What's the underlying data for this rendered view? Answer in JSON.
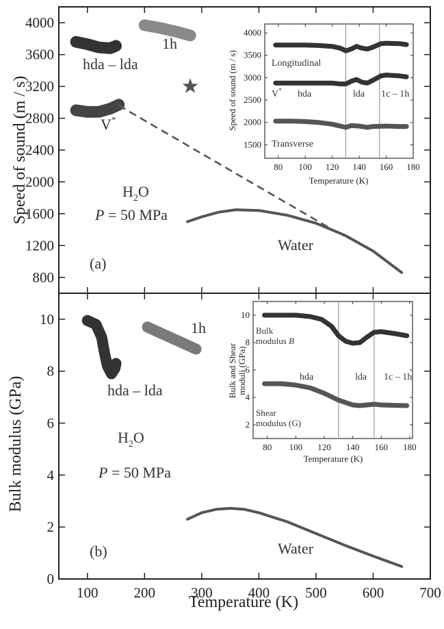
{
  "figure": {
    "x_axis_label": "Temperature (K)",
    "colors": {
      "dark": "#333333",
      "medium": "#555555",
      "light": "#8a8a8a",
      "vline": "#9a9a9a"
    }
  },
  "chart_data": [
    {
      "id": "a",
      "type": "line",
      "panel_label": "(a)",
      "xlabel": "Temperature (K)",
      "ylabel": "Speed of sound (m / s)",
      "xlim": [
        50,
        700
      ],
      "ylim": [
        600,
        4200
      ],
      "x_ticks": [
        100,
        200,
        300,
        400,
        500,
        600,
        700
      ],
      "y_ticks": [
        800,
        1200,
        1600,
        2000,
        2400,
        2800,
        3200,
        3600,
        4000
      ],
      "annotations": {
        "substance": "H",
        "substance_sub": "2",
        "substance_end": "O",
        "pressure_var": "P",
        "pressure_val": " = 50 MPa",
        "hda_lda": "hda – lda",
        "ih": "1h",
        "vstar": "V",
        "vstar_sup": "*",
        "water": "Water"
      },
      "series": [
        {
          "name": "hda – lda",
          "style": "band",
          "color": "#333333",
          "x": [
            80,
            100,
            120,
            140,
            150
          ],
          "y": [
            3760,
            3730,
            3690,
            3680,
            3710
          ]
        },
        {
          "name": "1h",
          "style": "band",
          "color": "#8a8a8a",
          "x": [
            200,
            230,
            260,
            280
          ],
          "y": [
            3970,
            3930,
            3880,
            3840
          ]
        },
        {
          "name": "V*",
          "style": "band",
          "color": "#444444",
          "x": [
            80,
            100,
            120,
            140,
            155
          ],
          "y": [
            2900,
            2880,
            2880,
            2920,
            2970
          ]
        },
        {
          "name": "Water",
          "style": "line",
          "color": "#555555",
          "x": [
            275,
            300,
            330,
            360,
            400,
            450,
            500,
            550,
            600,
            650
          ],
          "y": [
            1500,
            1560,
            1620,
            1650,
            1640,
            1580,
            1480,
            1330,
            1130,
            860
          ]
        },
        {
          "name": "extrapolation",
          "style": "dashed",
          "color": "#555555",
          "x": [
            155,
            548
          ],
          "y": [
            2960,
            1320
          ]
        },
        {
          "name": "star",
          "style": "marker",
          "color": "#555555",
          "x": [
            280
          ],
          "y": [
            3200
          ]
        }
      ],
      "inset": {
        "xlabel": "Temperature (K)",
        "ylabel": "Speed of sound (m / s)",
        "xlim": [
          70,
          180
        ],
        "ylim": [
          1200,
          4200
        ],
        "x_ticks": [
          80,
          100,
          120,
          140,
          160,
          180
        ],
        "y_ticks": [
          1500,
          2000,
          2500,
          3000,
          3500,
          4000
        ],
        "vlines": [
          130,
          155
        ],
        "labels": {
          "longitudinal": "Longitudinal",
          "vstar": "V",
          "vstar_sup": "*",
          "hda": "hda",
          "lda": "lda",
          "ic_ih": "1c – 1h",
          "transverse": "Transverse"
        },
        "series": [
          {
            "name": "Longitudinal",
            "color": "#333333",
            "x": [
              78,
              90,
              100,
              110,
              120,
              126,
              130,
              134,
              138,
              142,
              146,
              150,
              156,
              160,
              170,
              175
            ],
            "y": [
              3730,
              3730,
              3730,
              3720,
              3700,
              3660,
              3600,
              3640,
              3700,
              3660,
              3640,
              3680,
              3760,
              3770,
              3760,
              3740
            ]
          },
          {
            "name": "V*",
            "color": "#333333",
            "x": [
              78,
              90,
              100,
              110,
              120,
              126,
              130,
              134,
              138,
              142,
              146,
              150,
              156,
              160,
              170,
              175
            ],
            "y": [
              2880,
              2880,
              2880,
              2880,
              2880,
              2860,
              2860,
              2920,
              2960,
              2900,
              2880,
              2940,
              3040,
              3060,
              3040,
              3020
            ]
          },
          {
            "name": "Transverse",
            "color": "#555555",
            "x": [
              78,
              90,
              100,
              110,
              120,
              130,
              134,
              140,
              146,
              150,
              160,
              170,
              175
            ],
            "y": [
              2030,
              2030,
              2020,
              2000,
              1960,
              1890,
              1930,
              1920,
              1890,
              1910,
              1920,
              1910,
              1910
            ]
          }
        ]
      }
    },
    {
      "id": "b",
      "type": "line",
      "panel_label": "(b)",
      "xlabel": "Temperature (K)",
      "ylabel": "Bulk modulus (GPa)",
      "xlim": [
        50,
        700
      ],
      "ylim": [
        0,
        11
      ],
      "x_ticks": [
        100,
        200,
        300,
        400,
        500,
        600,
        700
      ],
      "y_ticks": [
        0,
        2,
        4,
        6,
        8,
        10
      ],
      "annotations": {
        "substance": "H",
        "substance_sub": "2",
        "substance_end": "O",
        "pressure_var": "P",
        "pressure_val": " = 50 MPa",
        "hda_lda": "hda – lda",
        "ih": "1h",
        "water": "Water"
      },
      "series": [
        {
          "name": "hda – lda",
          "style": "band",
          "color": "#333333",
          "x": [
            100,
            115,
            125,
            130,
            135,
            142,
            148,
            150
          ],
          "y": [
            9.95,
            9.8,
            9.3,
            8.7,
            8.2,
            7.9,
            8.1,
            8.3
          ]
        },
        {
          "name": "1h",
          "style": "band",
          "color": "#7a7a7a",
          "x": [
            205,
            230,
            260,
            290
          ],
          "y": [
            9.7,
            9.45,
            9.15,
            8.85
          ]
        },
        {
          "name": "Water",
          "style": "line",
          "color": "#555555",
          "x": [
            275,
            300,
            325,
            350,
            375,
            400,
            450,
            500,
            550,
            600,
            650
          ],
          "y": [
            2.3,
            2.55,
            2.68,
            2.72,
            2.68,
            2.55,
            2.2,
            1.75,
            1.3,
            0.88,
            0.48
          ]
        }
      ],
      "inset": {
        "xlabel": "Temperature (K)",
        "ylabel_line1": "Bulk and Shear",
        "ylabel_line2": "moduli (GPa)",
        "xlim": [
          70,
          182
        ],
        "ylim": [
          1,
          11
        ],
        "x_ticks": [
          80,
          100,
          120,
          140,
          160,
          180
        ],
        "y_ticks": [
          2,
          4,
          6,
          8,
          10
        ],
        "vlines": [
          130,
          155
        ],
        "labels": {
          "bulk_1": "Bulk",
          "bulk_2": "modulus ",
          "bulk_var": "B",
          "hda": "hda",
          "lda": "lda",
          "ic_ih": "1c – 1h",
          "shear_1": "Shear",
          "shear_2": "modulus (G)"
        },
        "series": [
          {
            "name": "Bulk modulus B",
            "color": "#333333",
            "x": [
              78,
              90,
              100,
              110,
              118,
              125,
              130,
              135,
              140,
              145,
              150,
              155,
              160,
              170,
              178
            ],
            "y": [
              10.0,
              10.0,
              10.0,
              9.9,
              9.7,
              9.2,
              8.5,
              8.1,
              7.95,
              8.0,
              8.4,
              8.75,
              8.8,
              8.65,
              8.5
            ]
          },
          {
            "name": "Shear modulus G",
            "color": "#555555",
            "x": [
              78,
              90,
              100,
              110,
              120,
              130,
              140,
              145,
              150,
              155,
              160,
              170,
              178
            ],
            "y": [
              5.0,
              5.0,
              4.9,
              4.7,
              4.3,
              3.8,
              3.45,
              3.4,
              3.45,
              3.5,
              3.45,
              3.42,
              3.4
            ]
          }
        ]
      }
    }
  ]
}
